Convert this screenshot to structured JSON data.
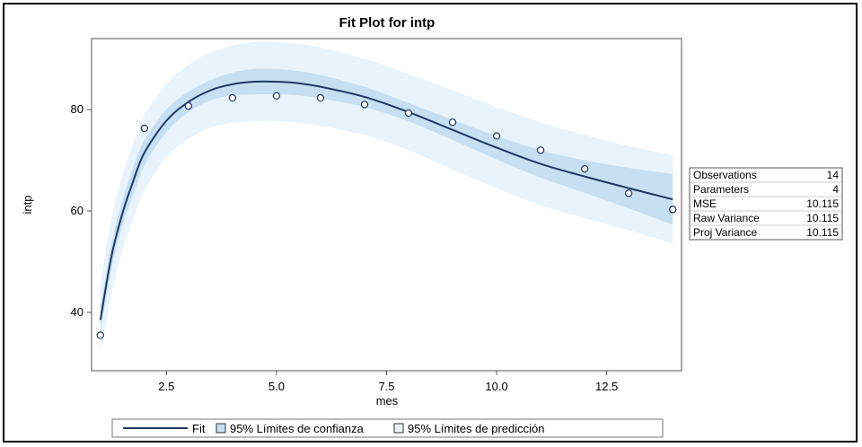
{
  "chart_data": {
    "type": "scatter",
    "title": "Fit Plot for intp",
    "xlabel": "mes",
    "ylabel": "intp",
    "xlim": [
      0.8,
      14.2
    ],
    "ylim": [
      28.5,
      94
    ],
    "xticks": [
      2.5,
      5.0,
      7.5,
      10.0,
      12.5
    ],
    "xtick_labels": [
      "2.5",
      "5.0",
      "7.5",
      "10.0",
      "12.5"
    ],
    "yticks": [
      40,
      60,
      80
    ],
    "ytick_labels": [
      "40",
      "60",
      "80"
    ],
    "grid": false,
    "series": [
      {
        "name": "observations",
        "kind": "points",
        "x": [
          1,
          2,
          3,
          4,
          5,
          6,
          7,
          8,
          9,
          10,
          11,
          12,
          13,
          14
        ],
        "y": [
          35.5,
          76.3,
          80.7,
          82.3,
          82.7,
          82.3,
          81.0,
          79.3,
          77.5,
          74.8,
          72.0,
          68.3,
          63.5,
          60.3
        ]
      },
      {
        "name": "Fit",
        "kind": "line",
        "x": [
          1.0,
          1.25,
          1.5,
          1.75,
          2.0,
          2.5,
          3.0,
          3.5,
          4.0,
          4.5,
          5.0,
          5.5,
          6.0,
          7.0,
          8.0,
          9.0,
          10.0,
          11.0,
          12.0,
          13.0,
          14.0
        ],
        "y": [
          38.5,
          51.0,
          59.5,
          66.0,
          71.5,
          77.8,
          81.5,
          83.8,
          85.0,
          85.5,
          85.5,
          85.2,
          84.5,
          82.5,
          79.5,
          76.0,
          72.5,
          69.3,
          66.8,
          64.5,
          62.3
        ]
      },
      {
        "name": "95% Límites de confianza",
        "kind": "band",
        "x": [
          1.0,
          1.25,
          1.5,
          1.75,
          2.0,
          2.5,
          3.0,
          3.5,
          4.0,
          4.5,
          5.0,
          5.5,
          6.0,
          7.0,
          8.0,
          9.0,
          10.0,
          11.0,
          12.0,
          13.0,
          14.0
        ],
        "upper": [
          41.0,
          53.5,
          62.0,
          68.8,
          74.0,
          80.0,
          83.5,
          85.8,
          87.3,
          88.0,
          88.0,
          87.6,
          86.8,
          84.5,
          81.3,
          78.0,
          74.8,
          72.0,
          70.0,
          68.5,
          67.3
        ],
        "lower": [
          36.0,
          48.5,
          57.0,
          63.3,
          69.0,
          75.6,
          79.5,
          81.8,
          82.8,
          83.0,
          83.0,
          82.8,
          82.2,
          80.5,
          77.7,
          74.0,
          70.2,
          66.6,
          63.6,
          60.5,
          57.3
        ]
      },
      {
        "name": "95% Límites de predicción",
        "kind": "band",
        "x": [
          1.0,
          1.25,
          1.5,
          1.75,
          2.0,
          2.5,
          3.0,
          3.5,
          4.0,
          4.5,
          5.0,
          5.5,
          6.0,
          7.0,
          8.0,
          9.0,
          10.0,
          11.0,
          12.0,
          13.0,
          14.0
        ],
        "upper": [
          45.5,
          58.5,
          67.0,
          73.5,
          79.0,
          85.0,
          88.8,
          91.2,
          92.6,
          93.3,
          93.3,
          93.0,
          92.2,
          90.0,
          87.0,
          83.8,
          80.5,
          77.5,
          75.0,
          72.8,
          71.0
        ],
        "lower": [
          31.5,
          43.5,
          52.0,
          58.5,
          64.0,
          70.6,
          74.2,
          76.4,
          77.4,
          77.7,
          77.7,
          77.4,
          76.8,
          75.0,
          72.0,
          68.2,
          64.5,
          61.1,
          58.6,
          56.2,
          53.6
        ]
      }
    ],
    "colors": {
      "fit_line": "#1f3864",
      "conf_band": "#c6dff2",
      "pred_band": "#e9f3fb",
      "marker_edge": "#1f3864"
    },
    "stats_table": {
      "rows": [
        {
          "label": "Observations",
          "value": "14"
        },
        {
          "label": "Parameters",
          "value": "4"
        },
        {
          "label": "MSE",
          "value": "10.115"
        },
        {
          "label": "Raw Variance",
          "value": "10.115"
        },
        {
          "label": "Proj Variance",
          "value": "10.115"
        }
      ]
    },
    "legend": {
      "placement": "bottom",
      "items": [
        {
          "label": "Fit",
          "symbol": "line"
        },
        {
          "label": "95% Límites de confianza",
          "symbol": "square"
        },
        {
          "label": "95% Límites de predicción",
          "symbol": "square"
        }
      ]
    }
  }
}
